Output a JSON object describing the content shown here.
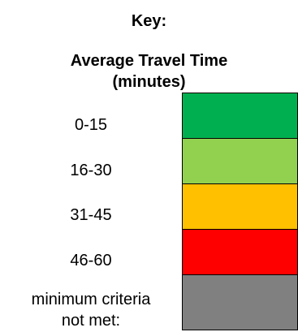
{
  "key_title": "Key:",
  "legend_title_line1": "Average Travel Time",
  "legend_title_line2": "(minutes)",
  "legend": [
    {
      "label": "0-15",
      "color": "#00b050"
    },
    {
      "label": "16-30",
      "color": "#92d050"
    },
    {
      "label": "31-45",
      "color": "#ffc000"
    },
    {
      "label": "46-60",
      "color": "#ff0000"
    },
    {
      "label_line1": "minimum criteria",
      "label_line2": "not met:",
      "color": "#808080"
    }
  ]
}
